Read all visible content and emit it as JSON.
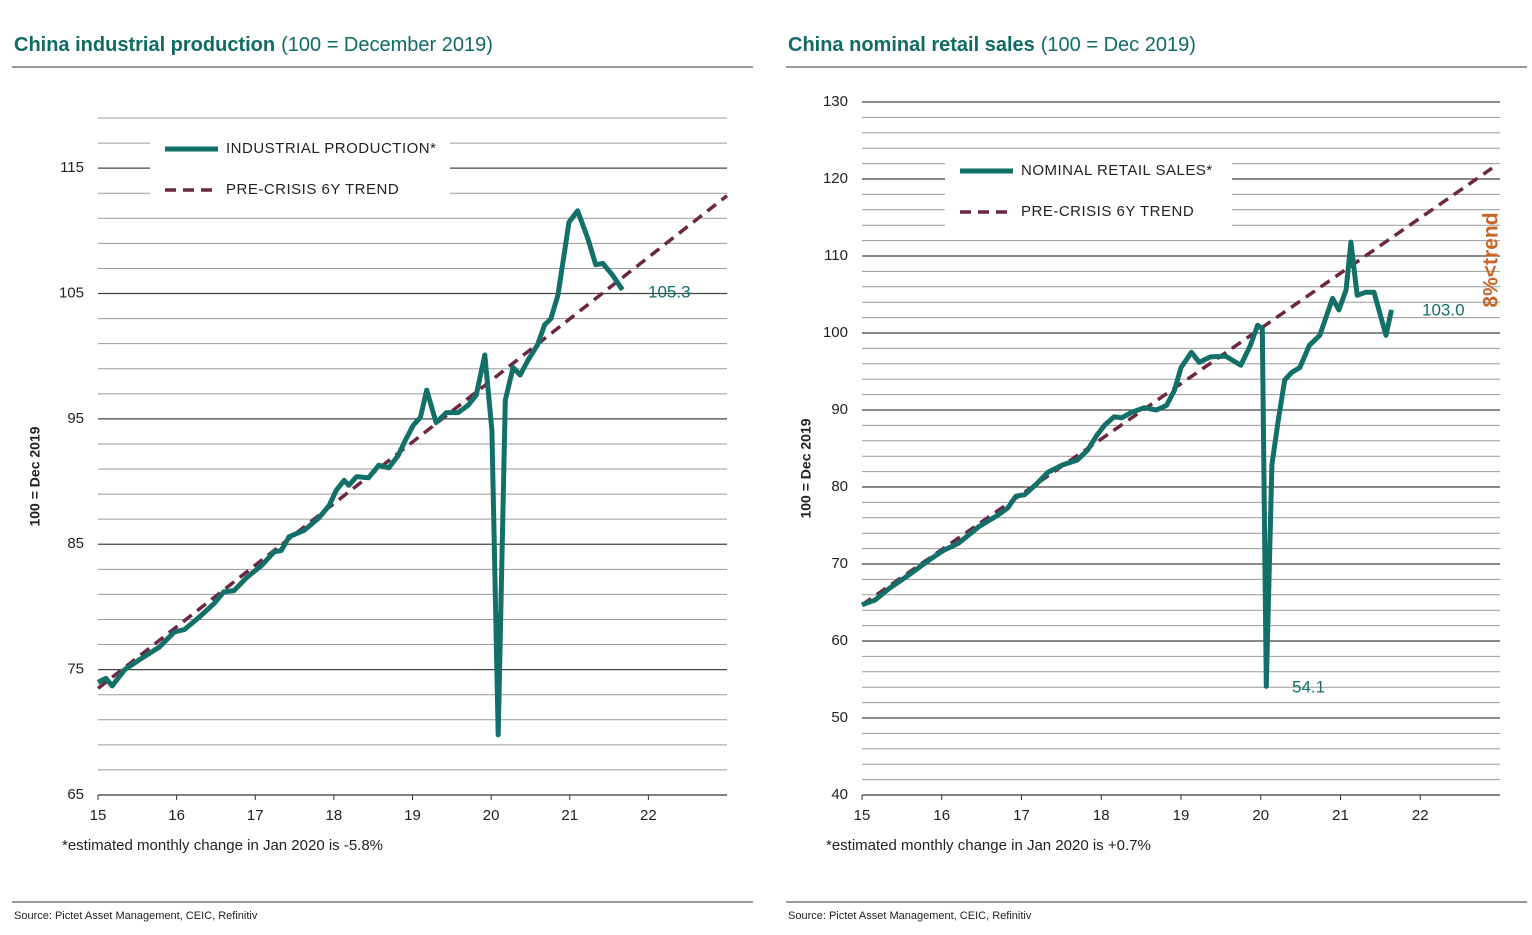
{
  "chart_data": [
    {
      "type": "line",
      "title": "China industrial production",
      "title_note": "(100 = December 2019)",
      "ylabel": "100 = Dec 2019",
      "xlim": [
        15,
        23
      ],
      "xticks": [
        15,
        16,
        17,
        18,
        19,
        20,
        21,
        22
      ],
      "ylim": [
        65,
        119
      ],
      "yticks": [
        65,
        75,
        85,
        95,
        105,
        115
      ],
      "minor_yticks": [
        65,
        67,
        69,
        71,
        73,
        75,
        77,
        79,
        81,
        83,
        85,
        87,
        89,
        91,
        93,
        95,
        97,
        99,
        101,
        103,
        105,
        107,
        109,
        111,
        113,
        115,
        117,
        119
      ],
      "grid": true,
      "series": [
        {
          "name": "INDUSTRIAL PRODUCTION*",
          "color": "#137068",
          "style": "solid",
          "x": [
            15.0,
            15.1,
            15.18,
            15.34,
            15.53,
            15.78,
            15.97,
            16.1,
            16.29,
            16.48,
            16.6,
            16.73,
            16.9,
            17.08,
            17.24,
            17.33,
            17.43,
            17.62,
            17.81,
            17.94,
            18.03,
            18.13,
            18.19,
            18.29,
            18.44,
            18.57,
            18.7,
            18.82,
            18.91,
            19.01,
            19.1,
            19.18,
            19.3,
            19.43,
            19.58,
            19.71,
            19.81,
            19.92,
            20.01,
            20.09,
            20.18,
            20.28,
            20.37,
            20.47,
            20.59,
            20.68,
            20.76,
            20.85,
            20.99,
            21.1,
            21.23,
            21.33,
            21.42,
            21.54,
            21.67
          ],
          "values": [
            74.0,
            74.3,
            73.7,
            75.0,
            75.8,
            76.8,
            78.0,
            78.2,
            79.2,
            80.3,
            81.2,
            81.3,
            82.4,
            83.3,
            84.4,
            84.5,
            85.6,
            86.1,
            87.1,
            88.1,
            89.3,
            90.1,
            89.7,
            90.4,
            90.3,
            91.3,
            91.1,
            92.1,
            93.3,
            94.5,
            95.1,
            97.3,
            94.7,
            95.5,
            95.5,
            96.1,
            96.9,
            100.1,
            94.1,
            69.8,
            96.5,
            99.1,
            98.5,
            99.7,
            100.9,
            102.5,
            103.0,
            104.9,
            110.7,
            111.6,
            109.4,
            107.3,
            107.4,
            106.5,
            105.3
          ]
        },
        {
          "name": "PRE-CRISIS 6Y TREND",
          "color": "#6b2746",
          "style": "dashed",
          "x": [
            15,
            23
          ],
          "values": [
            73.5,
            112.8
          ]
        }
      ],
      "annotations": [
        "105.3"
      ],
      "footnote": "*estimated monthly change in Jan 2020 is -5.8%",
      "source": "Source: Pictet Asset Management, CEIC, Refinitiv"
    },
    {
      "type": "line",
      "title": "China nominal retail sales",
      "title_note": "(100 = Dec 2019)",
      "ylabel": "100 = Dec 2019",
      "xlim": [
        15,
        23
      ],
      "xticks": [
        15,
        16,
        17,
        18,
        19,
        20,
        21,
        22
      ],
      "ylim": [
        40,
        130
      ],
      "yticks": [
        40,
        50,
        60,
        70,
        80,
        90,
        100,
        110,
        120,
        130
      ],
      "minor_yticks": [
        40,
        42,
        44,
        46,
        48,
        50,
        52,
        54,
        56,
        58,
        60,
        62,
        64,
        66,
        68,
        70,
        72,
        74,
        76,
        78,
        80,
        82,
        84,
        86,
        88,
        90,
        92,
        94,
        96,
        98,
        100,
        102,
        104,
        106,
        108,
        110,
        112,
        114,
        116,
        118,
        120,
        122,
        124,
        126,
        128,
        130
      ],
      "grid": true,
      "series": [
        {
          "name": "NOMINAL RETAIL SALES*",
          "color": "#137068",
          "style": "solid",
          "x": [
            15.0,
            15.16,
            15.35,
            15.59,
            15.84,
            16.03,
            16.21,
            16.46,
            16.71,
            16.83,
            16.93,
            17.04,
            17.2,
            17.33,
            17.52,
            17.7,
            17.83,
            17.95,
            18.05,
            18.16,
            18.26,
            18.38,
            18.54,
            18.69,
            18.82,
            18.92,
            19.0,
            19.13,
            19.23,
            19.37,
            19.56,
            19.75,
            19.87,
            19.96,
            20.02,
            20.07,
            20.14,
            20.22,
            20.3,
            20.39,
            20.49,
            20.61,
            20.74,
            20.9,
            20.98,
            21.07,
            21.13,
            21.21,
            21.32,
            21.42,
            21.57,
            21.64
          ],
          "values": [
            64.7,
            65.3,
            66.9,
            68.6,
            70.5,
            71.8,
            72.7,
            74.8,
            76.4,
            77.3,
            78.8,
            79.0,
            80.5,
            81.9,
            82.9,
            83.5,
            84.8,
            86.8,
            88.1,
            89.1,
            89.0,
            89.7,
            90.3,
            90.0,
            90.6,
            92.6,
            95.5,
            97.5,
            96.2,
            96.9,
            97.0,
            95.8,
            98.4,
            101.0,
            100.6,
            54.1,
            82.9,
            88.7,
            93.9,
            94.9,
            95.5,
            98.4,
            99.7,
            104.5,
            103.0,
            105.6,
            111.8,
            104.9,
            105.3,
            105.3,
            99.7,
            103.0
          ]
        },
        {
          "name": "PRE-CRISIS 6Y TREND",
          "color": "#6b2746",
          "style": "dashed",
          "x": [
            15,
            22.9
          ],
          "values": [
            64.7,
            121.4
          ]
        }
      ],
      "annotations": [
        "54.1",
        "103.0",
        "8%<trend"
      ],
      "footnote": "*estimated monthly change in Jan 2020 is +0.7%",
      "source": "Source: Pictet Asset Management, CEIC, Refinitiv"
    }
  ]
}
